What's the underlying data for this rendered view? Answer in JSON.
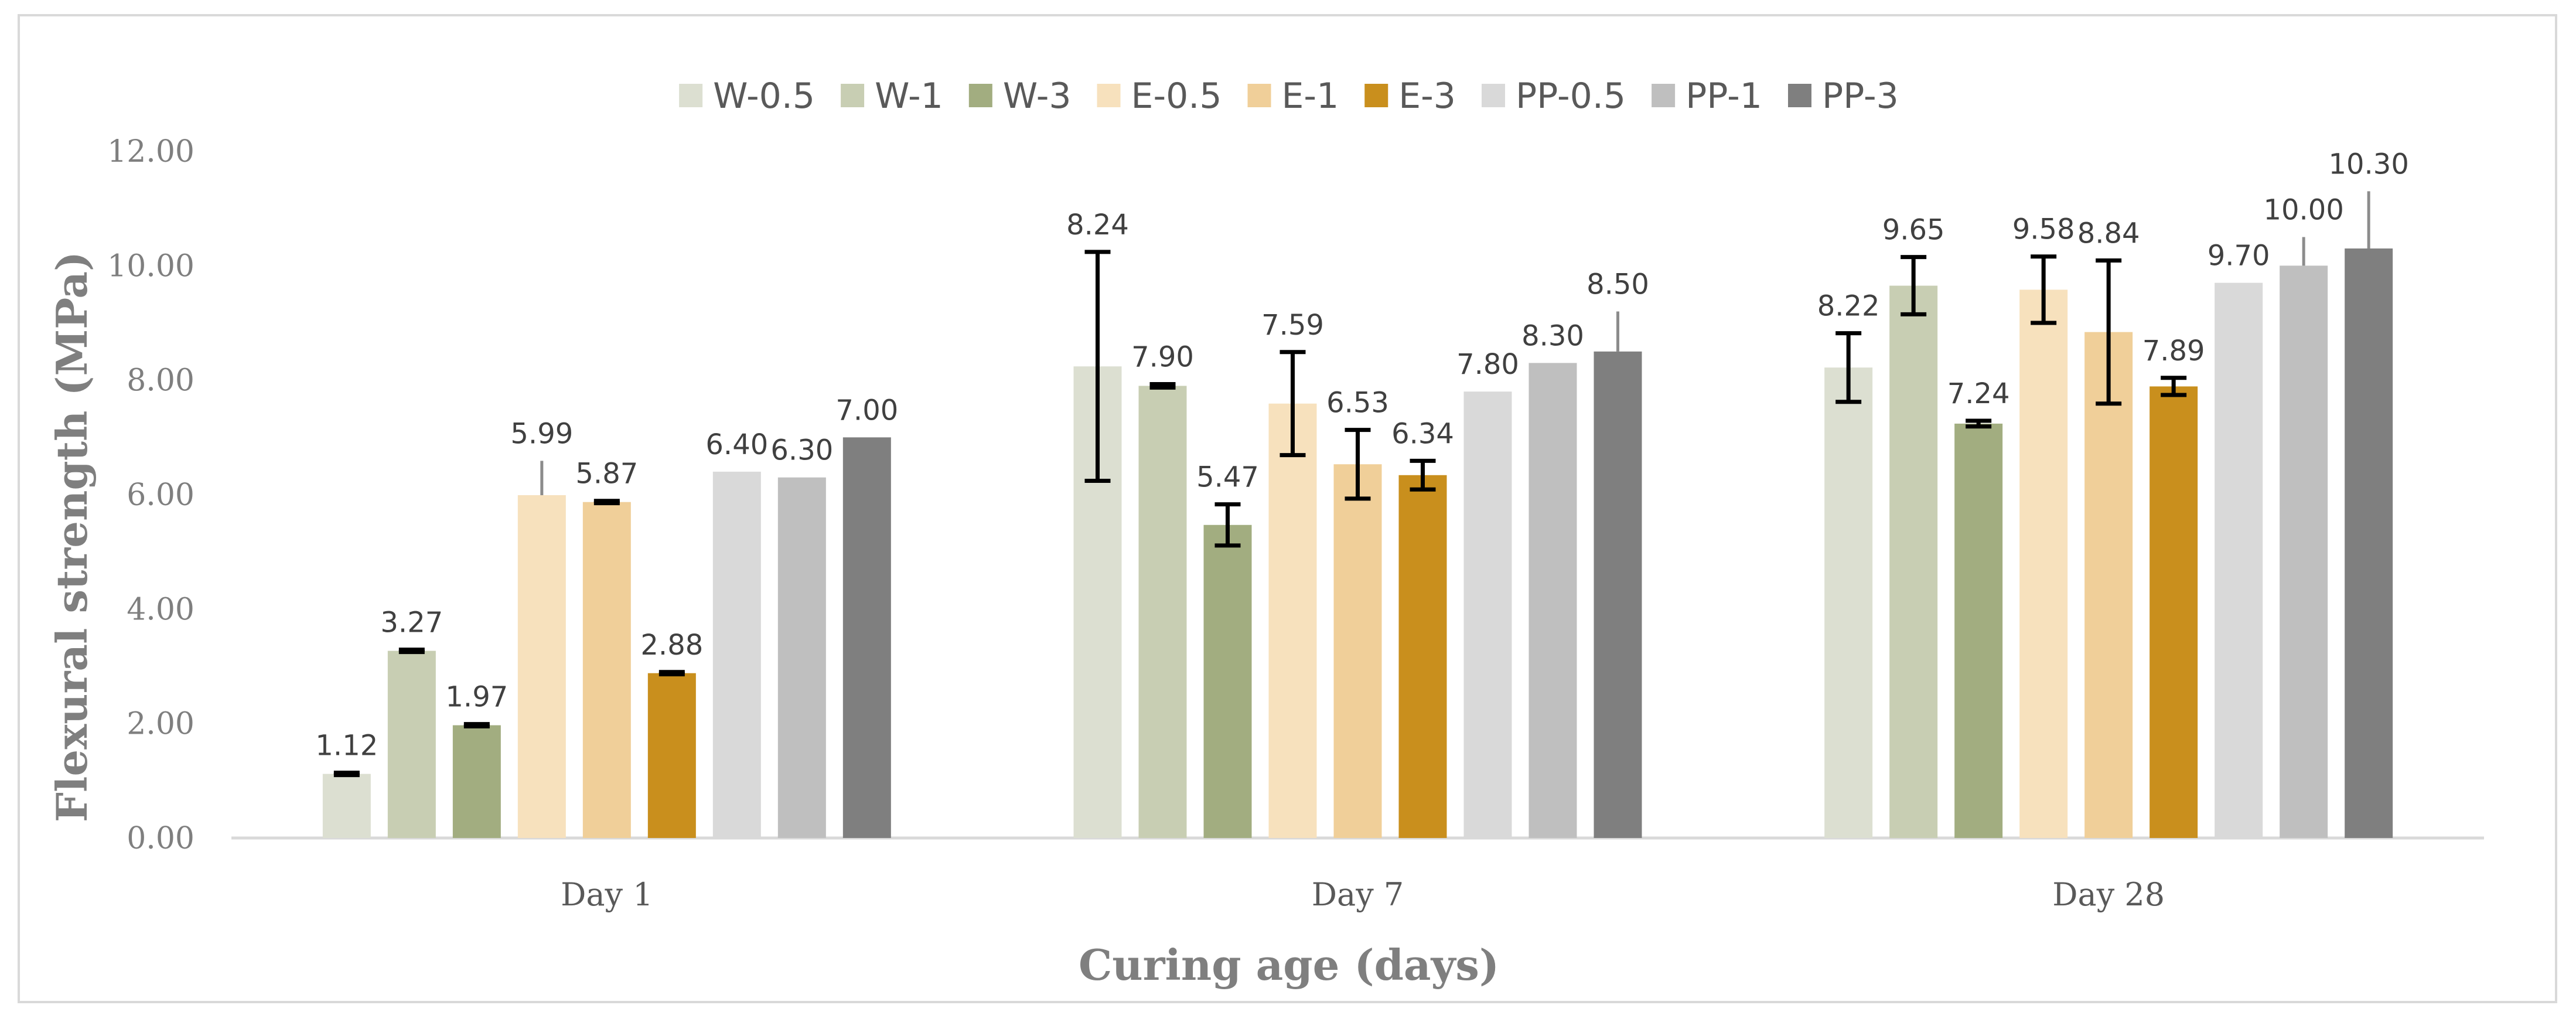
{
  "chart_data": {
    "type": "bar",
    "title": "",
    "xlabel": "Curing age (days)",
    "ylabel": "Flexural strength (MPa)",
    "ylim": [
      0,
      12
    ],
    "yticks": [
      "0.00",
      "2.00",
      "4.00",
      "6.00",
      "8.00",
      "10.00",
      "12.00"
    ],
    "grid": false,
    "legend_position": "top",
    "categories": [
      "Day 1",
      "Day 7",
      "Day 28"
    ],
    "series": [
      {
        "name": "W-0.5",
        "color": "#dcdfd1",
        "values": [
          1.12,
          8.24,
          8.22
        ],
        "labels": [
          "1.12",
          "8.24",
          "8.22"
        ],
        "err": [
          0.02,
          2.0,
          0.6
        ],
        "err_style": [
          "dark",
          "dark",
          "dark"
        ]
      },
      {
        "name": "W-1",
        "color": "#c8ceb3",
        "values": [
          3.27,
          7.9,
          9.65
        ],
        "labels": [
          "3.27",
          "7.90",
          "9.65"
        ],
        "err": [
          0.02,
          0.03,
          0.5
        ],
        "err_style": [
          "dark",
          "dark",
          "dark"
        ]
      },
      {
        "name": "W-3",
        "color": "#a2ad80",
        "values": [
          1.97,
          5.47,
          7.24
        ],
        "labels": [
          "1.97",
          "5.47",
          "7.24"
        ],
        "err": [
          0.02,
          0.36,
          0.05
        ],
        "err_style": [
          "dark",
          "dark",
          "dark"
        ]
      },
      {
        "name": "E-0.5",
        "color": "#f7e1bd",
        "values": [
          5.99,
          7.59,
          9.58
        ],
        "labels": [
          "5.99",
          "7.59",
          "9.58"
        ],
        "err": [
          0.6,
          0.9,
          0.58
        ],
        "err_style": [
          "gray",
          "dark",
          "dark"
        ]
      },
      {
        "name": "E-1",
        "color": "#f0cf99",
        "values": [
          5.87,
          6.53,
          8.84
        ],
        "labels": [
          "5.87",
          "6.53",
          "8.84"
        ],
        "err": [
          0.02,
          0.6,
          1.25
        ],
        "err_style": [
          "dark",
          "dark",
          "dark"
        ]
      },
      {
        "name": "E-3",
        "color": "#c98f1d",
        "values": [
          2.88,
          6.34,
          7.89
        ],
        "labels": [
          "2.88",
          "6.34",
          "7.89"
        ],
        "err": [
          0.02,
          0.25,
          0.15
        ],
        "err_style": [
          "dark",
          "dark",
          "dark"
        ]
      },
      {
        "name": "PP-0.5",
        "color": "#d9d9d9",
        "values": [
          6.4,
          7.8,
          9.7
        ],
        "labels": [
          "6.40",
          "7.80",
          "9.70"
        ],
        "err": [
          0,
          0,
          0
        ],
        "err_style": [
          "none",
          "none",
          "none"
        ]
      },
      {
        "name": "PP-1",
        "color": "#bfbfbf",
        "values": [
          6.3,
          8.3,
          10.0
        ],
        "labels": [
          "6.30",
          "8.30",
          "10.00"
        ],
        "err": [
          0,
          0,
          0.5
        ],
        "err_style": [
          "none",
          "none",
          "gray"
        ]
      },
      {
        "name": "PP-3",
        "color": "#7f7f7f",
        "values": [
          7.0,
          8.5,
          10.3
        ],
        "labels": [
          "7.00",
          "8.50",
          "10.30"
        ],
        "err": [
          0,
          0.7,
          1.0
        ],
        "err_style": [
          "none",
          "gray",
          "gray"
        ]
      }
    ]
  }
}
